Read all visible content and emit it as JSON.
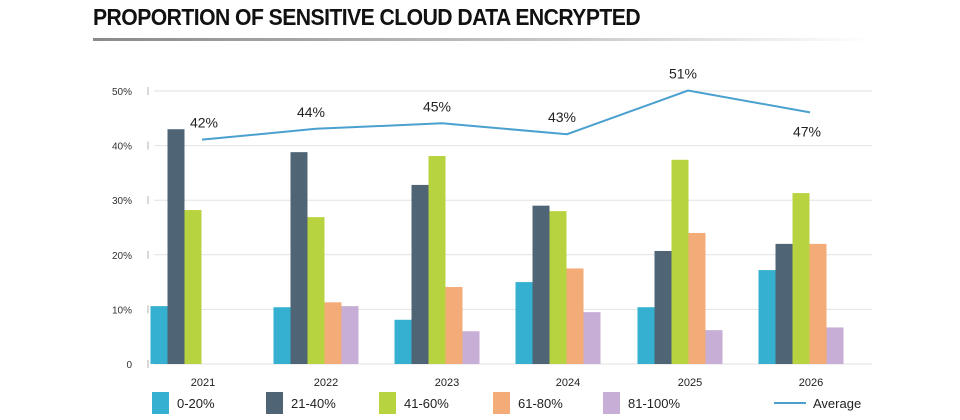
{
  "chart_data": {
    "type": "bar",
    "title": "PROPORTION OF SENSITIVE CLOUD DATA ENCRYPTED",
    "xlabel": "",
    "ylabel": "",
    "ylim": [
      0,
      50
    ],
    "yticks": [
      0,
      10,
      20,
      30,
      40,
      50
    ],
    "ytick_labels": [
      "0",
      "10%",
      "20%",
      "30%",
      "40%",
      "50%"
    ],
    "grid": true,
    "legend_position": "bottom",
    "categories": [
      "2021",
      "2022",
      "2023",
      "2024",
      "2025",
      "2026"
    ],
    "series": [
      {
        "name": "0-20%",
        "color": "#35b0d0",
        "values": [
          10.6,
          10.4,
          8.1,
          15.0,
          10.4,
          17.2
        ]
      },
      {
        "name": "21-40%",
        "color": "#4f6575",
        "values": [
          43.0,
          38.8,
          32.8,
          29.0,
          20.7,
          22.0
        ]
      },
      {
        "name": "41-60%",
        "color": "#b8d340",
        "values": [
          28.2,
          26.9,
          38.1,
          28.0,
          37.4,
          31.3
        ]
      },
      {
        "name": "61-80%",
        "color": "#f3ab78",
        "values": [
          0,
          11.3,
          14.1,
          17.5,
          24.0,
          22.0
        ]
      },
      {
        "name": "81-100%",
        "color": "#c7aed6",
        "values": [
          0,
          10.6,
          6.0,
          9.5,
          6.2,
          6.7
        ]
      }
    ],
    "line_series": {
      "name": "Average",
      "color": "#4aa0cf",
      "type": "line",
      "values": [
        42,
        44,
        45,
        43,
        51,
        47
      ],
      "labels": [
        "42%",
        "44%",
        "45%",
        "43%",
        "51%",
        "47%"
      ]
    }
  }
}
